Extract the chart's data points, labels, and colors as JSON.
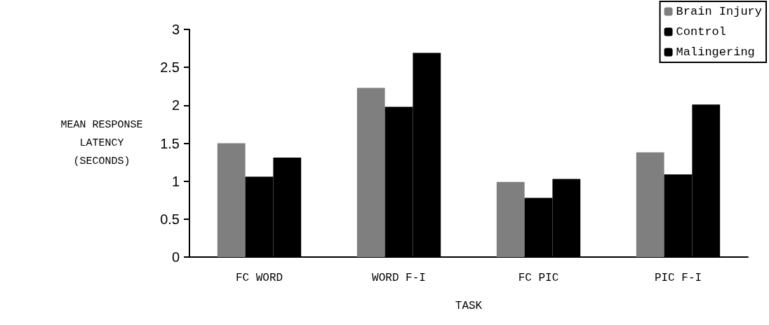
{
  "chart_data": {
    "type": "bar",
    "xlabel": "TASK",
    "ylabel": "MEAN RESPONSE\nLATENCY\n(SECONDS)",
    "categories": [
      "FC WORD",
      "WORD F-I",
      "FC PIC",
      "PIC F-I"
    ],
    "series": [
      {
        "name": "Brain Injury",
        "color": "#7f7f7f",
        "values": [
          1.5,
          2.23,
          0.99,
          1.38
        ]
      },
      {
        "name": "Control",
        "color": "#000000",
        "values": [
          1.06,
          1.98,
          0.78,
          1.09
        ]
      },
      {
        "name": "Malingering",
        "color": "#000000",
        "values": [
          1.31,
          2.69,
          1.03,
          2.01
        ]
      }
    ],
    "ylim": [
      0,
      3
    ],
    "yticks": [
      0,
      0.5,
      1,
      1.5,
      2,
      2.5,
      3
    ],
    "grid": false,
    "legend": "top right"
  }
}
